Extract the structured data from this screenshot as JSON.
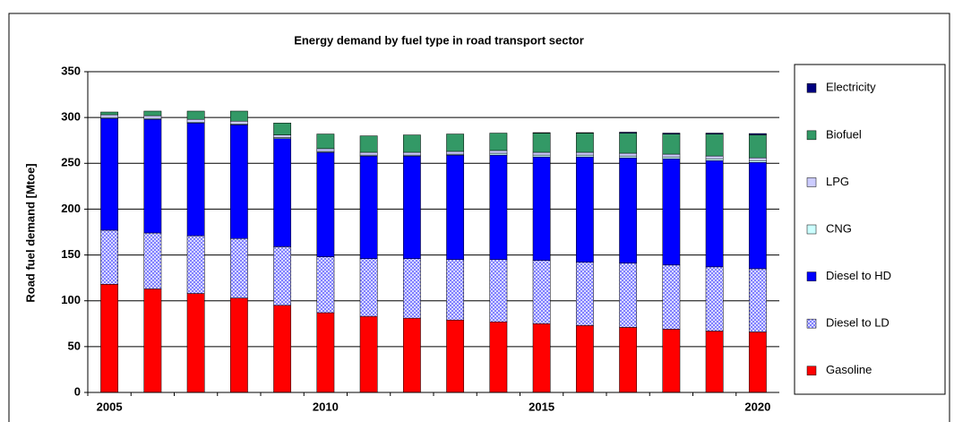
{
  "chart_data": {
    "type": "stacked-bar",
    "title": "Energy demand by fuel type in road transport sector",
    "y_label": "Road fuel demand [Mtoe]",
    "categories": [
      "2005",
      null,
      null,
      null,
      null,
      "2010",
      null,
      null,
      null,
      null,
      "2015",
      null,
      null,
      null,
      null,
      "2020"
    ],
    "series": [
      {
        "name": "Gasoline",
        "color": "#ff0000",
        "values": [
          118,
          113,
          108,
          103,
          95,
          87,
          83,
          81,
          79,
          77,
          75,
          73,
          71,
          69,
          67,
          66
        ]
      },
      {
        "name": "Diesel to LD",
        "color": "#8080ff",
        "pattern": true,
        "values": [
          59,
          61,
          63,
          65,
          64,
          61,
          63,
          65,
          66,
          68,
          69,
          69,
          70,
          70,
          70,
          69
        ]
      },
      {
        "name": "Diesel to HD",
        "color": "#0000ff",
        "values": [
          122,
          124,
          123,
          124,
          118,
          114,
          112,
          112,
          114,
          114,
          113,
          115,
          115,
          116,
          116,
          116
        ]
      },
      {
        "name": "CNG",
        "color": "#ccffff",
        "values": [
          1,
          1,
          1,
          1,
          1,
          1,
          1,
          1,
          1,
          2,
          2,
          2,
          2,
          2,
          2,
          2
        ]
      },
      {
        "name": "LPG",
        "color": "#ccccff",
        "values": [
          3,
          3,
          3,
          3,
          3,
          3,
          3,
          3,
          3,
          3,
          3,
          3,
          3,
          3,
          3,
          3
        ]
      },
      {
        "name": "Biofuel",
        "color": "#339966",
        "values": [
          3,
          5,
          9,
          11,
          13,
          16,
          18,
          19,
          19,
          19,
          21,
          21,
          22,
          22,
          24,
          25
        ]
      },
      {
        "name": "Electricity",
        "color": "#000080",
        "values": [
          0,
          0,
          0,
          0,
          0,
          0,
          0,
          0,
          0,
          0,
          0.5,
          0.5,
          1,
          1,
          1,
          1.5
        ]
      }
    ],
    "ylim": [
      0,
      350
    ],
    "yticks": [
      0,
      50,
      100,
      150,
      200,
      250,
      300,
      350
    ],
    "grid": true
  }
}
